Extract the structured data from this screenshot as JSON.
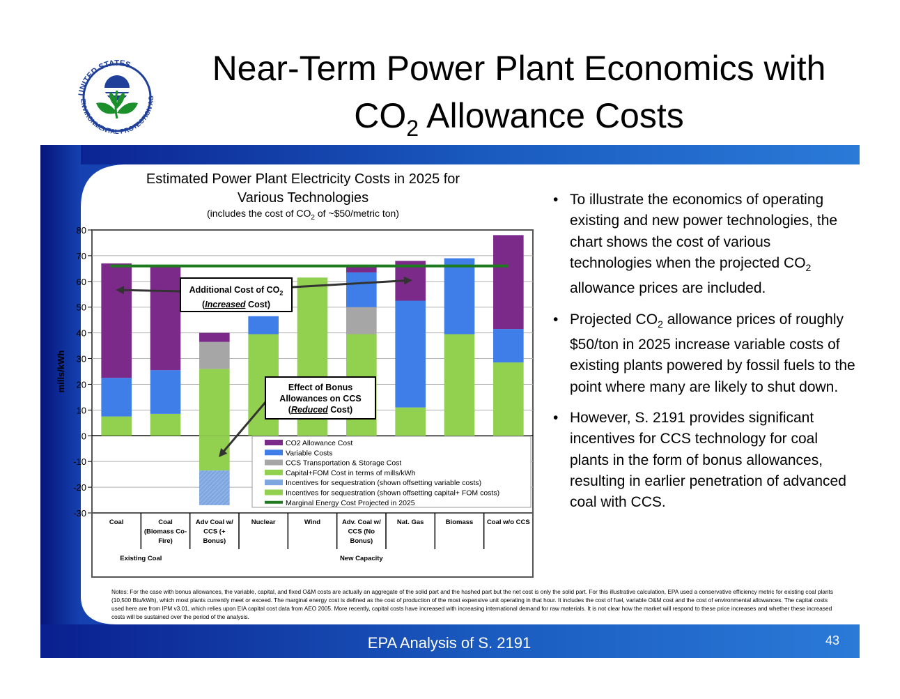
{
  "slide": {
    "title_line1": "Near-Term Power Plant Economics with",
    "title_line2_prefix": "CO",
    "title_line2_sub": "2",
    "title_line2_suffix": " Allowance Costs",
    "footer": "EPA Analysis of S. 2191",
    "page_number": "43",
    "logo_text": "UNITED STATES ENVIRONMENTAL PROTECTION AGENCY",
    "colors": {
      "banner_blue": "#1a5bbf",
      "banner_dark": "#0a1f8f",
      "logo_blue": "#1f3f9a",
      "logo_green": "#1a8f2a"
    }
  },
  "bullets": [
    {
      "parts": [
        "To illustrate the economics of operating existing and new power technologies, the chart shows the cost of various technologies when the projected CO",
        "2",
        " allowance prices are included."
      ]
    },
    {
      "parts": [
        "Projected CO",
        "2",
        " allowance prices of roughly $50/ton in 2025 increase variable costs of existing plants powered by fossil fuels to the point where many are likely to shut down."
      ]
    },
    {
      "parts": [
        "However, S. 2191 provides significant incentives for CCS technology for coal plants in the form of bonus allowances, resulting in earlier penetration of advanced coal with CCS.",
        "",
        ""
      ]
    }
  ],
  "callouts": {
    "c1_line1_prefix": "Additional Cost of CO",
    "c1_line1_sub": "2",
    "c1_line2_open": "(",
    "c1_line2_em": "Increased",
    "c1_line2_close": " Cost)",
    "c2_line1": "Effect of Bonus",
    "c2_line2": "Allowances on CCS",
    "c2_line3_open": "(",
    "c2_line3_em": "Reduced",
    "c2_line3_close": " Cost)"
  },
  "notes": "Notes: For the case with bonus allowances, the variable, capital, and fixed O&M costs are actually an aggregate of the solid part and the hashed part but the net cost is only the solid part.  For this illustrative calculation, EPA used a conservative efficiency metric for existing coal plants (10,500 Btu/kWh), which most plants currently meet or exceed.  The marginal energy cost is defined as the cost of production of the most expensive unit operating in that hour.  It includes the cost of fuel, variable O&M cost and the cost of environmental allowances.  The capital costs used here are from IPM v3.01, which relies upon EIA capital cost data from AEO 2005.  More recently, capital costs have increased with increasing international demand for raw materials.  It is not clear how the market will respond to these price increases and whether these increased costs will be sustained over the period of the analysis.",
  "chart_data": {
    "type": "bar",
    "title_line1": "Estimated Power Plant Electricity Costs in 2025 for",
    "title_line2": "Various Technologies",
    "subtitle_prefix": "(includes the cost of CO",
    "subtitle_sub": "2",
    "subtitle_suffix": " of ~$50/metric ton)",
    "ylabel": "mills/kWh",
    "ylim": [
      -30,
      80
    ],
    "yticks": [
      80,
      70,
      60,
      50,
      40,
      30,
      20,
      10,
      0,
      -10,
      -20,
      -30
    ],
    "grid": true,
    "legend_position": "bottom-right inside plot",
    "categories": [
      [
        "Coal"
      ],
      [
        "Coal",
        "(Biomass Co-",
        "Fire)"
      ],
      [
        "Adv Coal w/",
        "CCS (+",
        "Bonus)"
      ],
      [
        "Nuclear"
      ],
      [
        "Wind"
      ],
      [
        "Adv. Coal w/",
        "CCS (No",
        "Bonus)"
      ],
      [
        "Nat. Gas"
      ],
      [
        "Biomass"
      ],
      [
        "Coal w/o CCS"
      ]
    ],
    "groups": [
      {
        "label": "Existing Coal",
        "span": [
          0,
          1
        ]
      },
      {
        "label": "New Capacity",
        "span": [
          2,
          8
        ]
      }
    ],
    "series": [
      {
        "name": "Capital+FOM Cost in terms of mills/kWh",
        "color": "#92d050",
        "values": [
          7.5,
          8.5,
          26,
          39.5,
          61.5,
          39.5,
          11,
          39.5,
          28.5
        ]
      },
      {
        "name": "CCS Transportation & Storage Cost",
        "color": "#a6a6a6",
        "values": [
          0,
          0,
          10.5,
          0,
          0,
          10.5,
          0,
          0,
          0
        ]
      },
      {
        "name": "Variable Costs",
        "color": "#3f7ee8",
        "values": [
          15,
          17,
          0,
          7,
          0,
          13.5,
          41.5,
          29.5,
          13
        ]
      },
      {
        "name": "CO2 Allowance Cost",
        "color": "#7b2a8a",
        "values": [
          44.5,
          40.5,
          3.5,
          0,
          0,
          2.5,
          15.5,
          0,
          36.5
        ]
      },
      {
        "name": "Incentives for sequestration (shown offsetting capital+ FOM costs)",
        "color": "#92d050",
        "values": [
          0,
          0,
          -13.5,
          0,
          0,
          0,
          0,
          0,
          0
        ]
      },
      {
        "name": "Incentives for sequestration (shown offsetting variable costs)",
        "color": "#7ea6e0",
        "values": [
          0,
          0,
          -13.5,
          0,
          0,
          0,
          0,
          0,
          0
        ]
      }
    ],
    "marginal_line": {
      "name": "Marginal Energy Cost Projected in 2025",
      "value": 66,
      "color": "#1e7b1e"
    },
    "legend_order": [
      {
        "label": "CO2 Allowance Cost",
        "color": "#7b2a8a",
        "kind": "box"
      },
      {
        "label": "Variable Costs",
        "color": "#3f7ee8",
        "kind": "box"
      },
      {
        "label": "CCS Transportation & Storage Cost",
        "color": "#a6a6a6",
        "kind": "box"
      },
      {
        "label": "Capital+FOM Cost in terms of mills/kWh",
        "color": "#92d050",
        "kind": "box"
      },
      {
        "label": "Incentives for sequestration (shown offsetting variable costs)",
        "color": "#7ea6e0",
        "kind": "box"
      },
      {
        "label": "Incentives for sequestration (shown offsetting capital+ FOM costs)",
        "color": "#92d050",
        "kind": "box"
      },
      {
        "label": "Marginal Energy Cost Projected in 2025",
        "color": "#1e7b1e",
        "kind": "line"
      }
    ]
  }
}
